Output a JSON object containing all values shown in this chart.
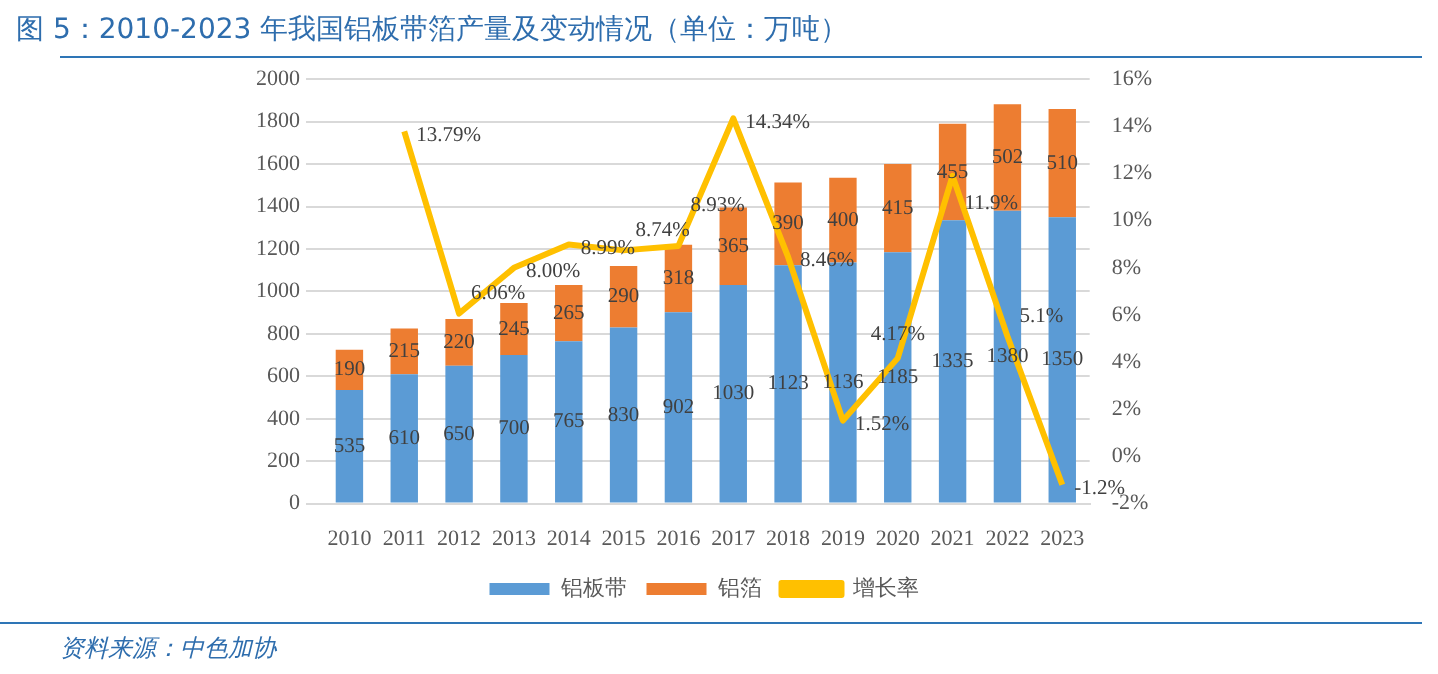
{
  "chart_data": {
    "type": "bar",
    "title": "图 5：2010-2023 年我国铝板带箔产量及变动情况（单位：万吨）",
    "annotations": [
      "资料来源：中色加协"
    ],
    "categories": [
      "2010",
      "2011",
      "2012",
      "2013",
      "2014",
      "2015",
      "2016",
      "2017",
      "2018",
      "2019",
      "2020",
      "2021",
      "2022",
      "2023"
    ],
    "stacked": true,
    "data_labels": true,
    "grid": "y",
    "legend": "bottom",
    "ylim": [
      0,
      2000
    ],
    "yticks": [
      0,
      200,
      400,
      600,
      800,
      1000,
      1200,
      1400,
      1600,
      1800,
      2000
    ],
    "y2lim": [
      -2,
      16
    ],
    "y2ticks": [
      {
        "value": -2,
        "label": "-2%"
      },
      {
        "value": 0,
        "label": "0%"
      },
      {
        "value": 2,
        "label": "2%"
      },
      {
        "value": 4,
        "label": "4%"
      },
      {
        "value": 6,
        "label": "6%"
      },
      {
        "value": 8,
        "label": "8%"
      },
      {
        "value": 10,
        "label": "10%"
      },
      {
        "value": 12,
        "label": "12%"
      },
      {
        "value": 14,
        "label": "14%"
      },
      {
        "value": 16,
        "label": "16%"
      }
    ],
    "series": [
      {
        "name": "铝板带",
        "color": "#5b9bd5",
        "values": [
          535,
          610,
          650,
          700,
          765,
          830,
          902,
          1030,
          1123,
          1136,
          1185,
          1335,
          1380,
          1350
        ]
      },
      {
        "name": "铝箔",
        "color": "#ed7d31",
        "values": [
          190,
          215,
          220,
          245,
          265,
          290,
          318,
          365,
          390,
          400,
          415,
          455,
          502,
          510
        ]
      },
      {
        "name": "增长率",
        "type": "line",
        "axis": "y2",
        "color": "#ffc000",
        "marker": "none",
        "values": [
          null,
          13.79,
          6.06,
          8.0,
          8.99,
          8.74,
          8.93,
          14.34,
          8.46,
          1.52,
          4.17,
          11.9,
          5.1,
          -1.2
        ],
        "value_labels": [
          null,
          "13.79%",
          "6.06%",
          "8.00%",
          "8.99%",
          "8.74%",
          "8.93%",
          "14.34%",
          "8.46%",
          "1.52%",
          "4.17%",
          "11.9%",
          "5.1%",
          "-1.2%"
        ]
      }
    ]
  }
}
